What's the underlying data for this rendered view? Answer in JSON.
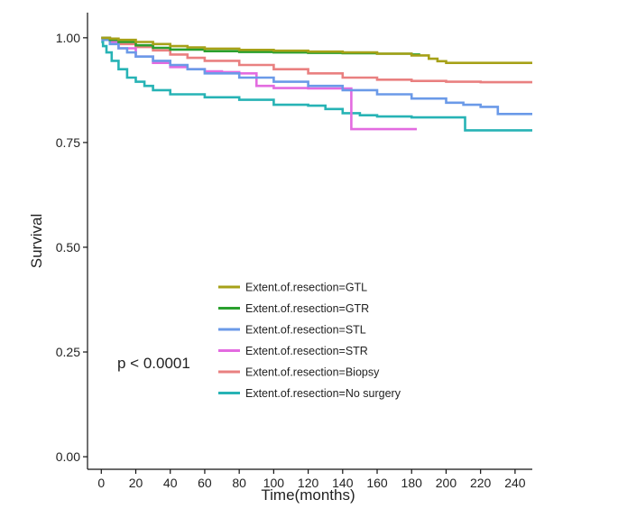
{
  "chart_data": {
    "type": "line",
    "subtype": "kaplan-meier-step",
    "title": "",
    "xlabel": "Time(months)",
    "ylabel": "Survival",
    "xlim": [
      -8,
      250
    ],
    "ylim": [
      -0.03,
      1.06
    ],
    "x_ticks": [
      0,
      20,
      40,
      60,
      80,
      100,
      120,
      140,
      160,
      180,
      200,
      220,
      240
    ],
    "x_tick_labels": [
      "0",
      "20",
      "40",
      "60",
      "80",
      "100",
      "120",
      "140",
      "160",
      "180",
      "200",
      "220",
      "240"
    ],
    "y_ticks": [
      0,
      0.25,
      0.5,
      0.75,
      1.0
    ],
    "y_tick_labels": [
      "0.00",
      "0.25",
      "0.50",
      "0.75",
      "1.00"
    ],
    "grid": false,
    "legend_position": "center-left",
    "annotation": "p < 0.0001",
    "series": [
      {
        "name": "Extent.of.resection=GTL",
        "color": "#a6a118",
        "x": [
          0,
          5,
          10,
          20,
          30,
          40,
          50,
          60,
          80,
          100,
          120,
          140,
          160,
          180,
          190,
          195,
          200,
          250
        ],
        "y": [
          1.0,
          0.998,
          0.995,
          0.99,
          0.985,
          0.98,
          0.977,
          0.974,
          0.971,
          0.969,
          0.967,
          0.965,
          0.962,
          0.958,
          0.95,
          0.944,
          0.94,
          0.94
        ]
      },
      {
        "name": "Extent.of.resection=GTR",
        "color": "#2aa02e",
        "x": [
          0,
          5,
          10,
          20,
          30,
          40,
          60,
          80,
          100,
          120,
          140,
          160,
          180,
          185
        ],
        "y": [
          1.0,
          0.995,
          0.99,
          0.982,
          0.976,
          0.972,
          0.968,
          0.966,
          0.965,
          0.964,
          0.963,
          0.962,
          0.96,
          0.96
        ]
      },
      {
        "name": "Extent.of.resection=STL",
        "color": "#6b9ae8",
        "x": [
          0,
          5,
          10,
          15,
          20,
          30,
          40,
          50,
          60,
          80,
          100,
          120,
          140,
          160,
          180,
          200,
          210,
          220,
          230,
          240,
          250
        ],
        "y": [
          0.995,
          0.985,
          0.975,
          0.965,
          0.955,
          0.945,
          0.935,
          0.925,
          0.915,
          0.905,
          0.895,
          0.885,
          0.875,
          0.865,
          0.855,
          0.845,
          0.84,
          0.835,
          0.818,
          0.818,
          0.818
        ]
      },
      {
        "name": "Extent.of.resection=STR",
        "color": "#e36be0",
        "x": [
          0,
          5,
          10,
          20,
          30,
          40,
          50,
          60,
          70,
          80,
          90,
          100,
          120,
          140,
          145,
          160,
          175,
          183
        ],
        "y": [
          1.0,
          0.99,
          0.975,
          0.955,
          0.94,
          0.93,
          0.925,
          0.92,
          0.918,
          0.915,
          0.885,
          0.88,
          0.879,
          0.879,
          0.782,
          0.782,
          0.782,
          0.782
        ]
      },
      {
        "name": "Extent.of.resection=Biopsy",
        "color": "#e98080",
        "x": [
          0,
          5,
          10,
          20,
          30,
          40,
          50,
          60,
          80,
          100,
          120,
          140,
          160,
          180,
          200,
          220,
          250
        ],
        "y": [
          1.0,
          0.99,
          0.985,
          0.978,
          0.97,
          0.96,
          0.952,
          0.945,
          0.935,
          0.925,
          0.915,
          0.905,
          0.9,
          0.897,
          0.895,
          0.894,
          0.894
        ]
      },
      {
        "name": "Extent.of.resection=No surgery",
        "color": "#27b3b5",
        "x": [
          0,
          1,
          3,
          6,
          10,
          15,
          20,
          25,
          30,
          40,
          60,
          80,
          100,
          120,
          130,
          140,
          150,
          160,
          180,
          200,
          210,
          211,
          250
        ],
        "y": [
          0.99,
          0.98,
          0.965,
          0.945,
          0.925,
          0.905,
          0.895,
          0.885,
          0.875,
          0.865,
          0.858,
          0.852,
          0.84,
          0.838,
          0.83,
          0.82,
          0.815,
          0.812,
          0.81,
          0.81,
          0.81,
          0.779,
          0.779
        ]
      }
    ]
  }
}
